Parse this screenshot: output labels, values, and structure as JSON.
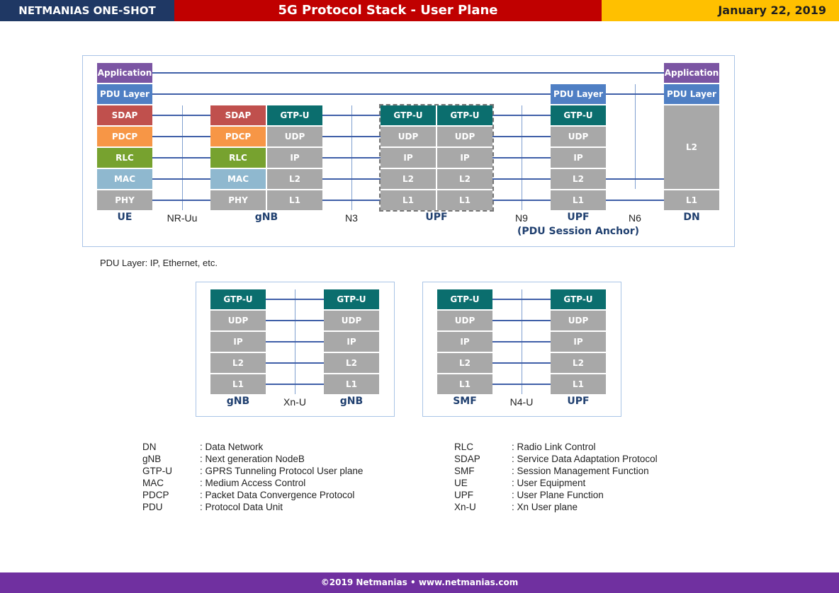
{
  "header": {
    "left": "NETMANIAS ONE-SHOT",
    "title": "5G Protocol Stack - User Plane",
    "date": "January 22, 2019"
  },
  "colors": {
    "header_left": "#1f3864",
    "header_mid": "#c00000",
    "header_right": "#ffc000",
    "application": "#7b55a3",
    "pdu_layer": "#4f7fc4",
    "sdap": "#c0504d",
    "pdcp": "#f79646",
    "rlc": "#77a22f",
    "mac": "#8fb8cf",
    "gray_layer": "#a8a8a8",
    "gtp_u": "#0b6e6e",
    "node_label": "#1f3f6f",
    "footer": "#7030a0"
  },
  "main": {
    "ue": [
      "Application",
      "PDU Layer",
      "SDAP",
      "PDCP",
      "RLC",
      "MAC",
      "PHY"
    ],
    "gnb_left": [
      "SDAP",
      "PDCP",
      "RLC",
      "MAC",
      "PHY"
    ],
    "gnb_right": [
      "GTP-U",
      "UDP",
      "IP",
      "L2",
      "L1"
    ],
    "upf1_left": [
      "GTP-U",
      "UDP",
      "IP",
      "L2",
      "L1"
    ],
    "upf1_right": [
      "GTP-U",
      "UDP",
      "IP",
      "L2",
      "L1"
    ],
    "upf2": [
      "PDU Layer",
      "GTP-U",
      "UDP",
      "IP",
      "L2",
      "L1"
    ],
    "dn": [
      "Application",
      "PDU Layer",
      "L2",
      "L1"
    ],
    "labels": {
      "ue": "UE",
      "nr_uu": "NR-Uu",
      "gnb": "gNB",
      "n3": "N3",
      "upf": "UPF",
      "n9": "N9",
      "upf2": "UPF",
      "n6": "N6",
      "dn": "DN",
      "anchor": "(PDU Session Anchor)"
    }
  },
  "note": "PDU Layer: IP, Ethernet, etc.",
  "xn": {
    "left": [
      "GTP-U",
      "UDP",
      "IP",
      "L2",
      "L1"
    ],
    "right": [
      "GTP-U",
      "UDP",
      "IP",
      "L2",
      "L1"
    ],
    "labels": {
      "left": "gNB",
      "mid": "Xn-U",
      "right": "gNB"
    }
  },
  "n4": {
    "left": [
      "GTP-U",
      "UDP",
      "IP",
      "L2",
      "L1"
    ],
    "right": [
      "GTP-U",
      "UDP",
      "IP",
      "L2",
      "L1"
    ],
    "labels": {
      "left": "SMF",
      "mid": "N4-U",
      "right": "UPF"
    }
  },
  "glossary": {
    "left": [
      {
        "term": "DN",
        "def": ": Data Network"
      },
      {
        "term": "gNB",
        "def": ": Next generation NodeB"
      },
      {
        "term": "GTP-U",
        "def": ": GPRS Tunneling Protocol User plane"
      },
      {
        "term": "MAC",
        "def": ": Medium Access Control"
      },
      {
        "term": "PDCP",
        "def": ": Packet Data Convergence Protocol"
      },
      {
        "term": "PDU",
        "def": ": Protocol Data Unit"
      }
    ],
    "right": [
      {
        "term": "RLC",
        "def": ": Radio Link Control"
      },
      {
        "term": "SDAP",
        "def": ": Service Data Adaptation Protocol"
      },
      {
        "term": "SMF",
        "def": ": Session Management Function"
      },
      {
        "term": "UE",
        "def": ": User Equipment"
      },
      {
        "term": "UPF",
        "def": ": User Plane Function"
      },
      {
        "term": "Xn-U",
        "def": ": Xn User plane"
      }
    ]
  },
  "footer": "©2019 Netmanias • www.netmanias.com"
}
